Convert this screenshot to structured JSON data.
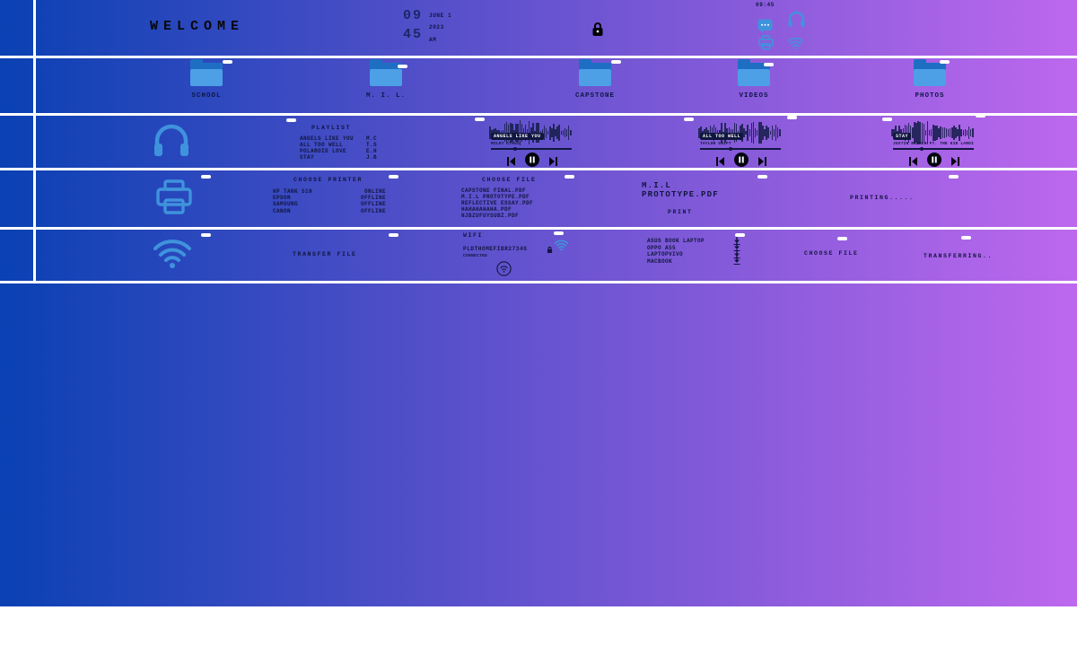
{
  "theme": {
    "gradient_left": "#0a41b3",
    "gradient_right": "#bd68ee",
    "icon_blue": "#3f93dc",
    "text_navy": "#10163f",
    "divider_white": "#ffffff"
  },
  "topbar": {
    "welcome": "WELCOME",
    "clock": {
      "hour": "09",
      "minute": "45",
      "date_line1": "JUNE 1",
      "date_line2": "2023",
      "meridiem": "AM"
    },
    "tray_clock": "09:45"
  },
  "folders": {
    "items": [
      {
        "label": "SCHOOL"
      },
      {
        "label": "M. I. L."
      },
      {
        "label": "CAPSTONE"
      },
      {
        "label": "VIDEOS"
      },
      {
        "label": "PHOTOS"
      }
    ]
  },
  "music": {
    "playlist_title": "PLAYLIST",
    "songs": [
      {
        "title": "ANGELS LIKE YOU",
        "artist": "M.C"
      },
      {
        "title": "ALL TOO WELL",
        "artist": "T.S"
      },
      {
        "title": "POLAROID LOVE",
        "artist": "E.H"
      },
      {
        "title": "STAY",
        "artist": "J.B"
      }
    ],
    "players": [
      {
        "title": "ANGELS LIKE YOU",
        "subtitle": "MILEY CYRUS",
        "progress": 0.3
      },
      {
        "title": "ALL TOO WELL",
        "subtitle": "TAYLOR SWIFT",
        "progress": 0.38
      },
      {
        "title": "STAY",
        "subtitle": "JUSTIN BIEBER FT. THE KID LAROI",
        "progress": 0.35
      }
    ]
  },
  "printing": {
    "choose_printer_title": "CHOOSE PRINTER",
    "printers": [
      {
        "name": "HP TANK 519",
        "status": "ONLINE"
      },
      {
        "name": "EPSON",
        "status": "OFFLINE"
      },
      {
        "name": "SAMSUNG",
        "status": "OFFLINE"
      },
      {
        "name": "CANON",
        "status": "OFFLINE"
      }
    ],
    "choose_file_title": "CHOOSE FILE",
    "files": [
      "CAPSTONE FINAL.PDF",
      "M.I.L PROTOTYPE.PDF",
      "REFLECTIVE ESSAY.PDF",
      "HAHAHAHAHA.PDF",
      "NJBZUFUYSUBZ.PDF"
    ],
    "selected_file_line1": "M.I.L",
    "selected_file_line2": "PROTOTYPE.PDF",
    "print_button": "PRINT",
    "status": "PRINTING....."
  },
  "transfer": {
    "title": "TRANSFER FILE",
    "wifi_title": "WIFI",
    "network_name": "PLDTHOMEFIBR2734G",
    "network_status": "CONNECTED",
    "devices": [
      {
        "name": "ASUS BOOK LAPTOP"
      },
      {
        "name": "OPPO A55"
      },
      {
        "name": "LAPTOPVIVO"
      },
      {
        "name": "MACBOOK"
      }
    ],
    "choose_file_label": "CHOOSE FILE",
    "status": "TRANSFERRING.."
  }
}
